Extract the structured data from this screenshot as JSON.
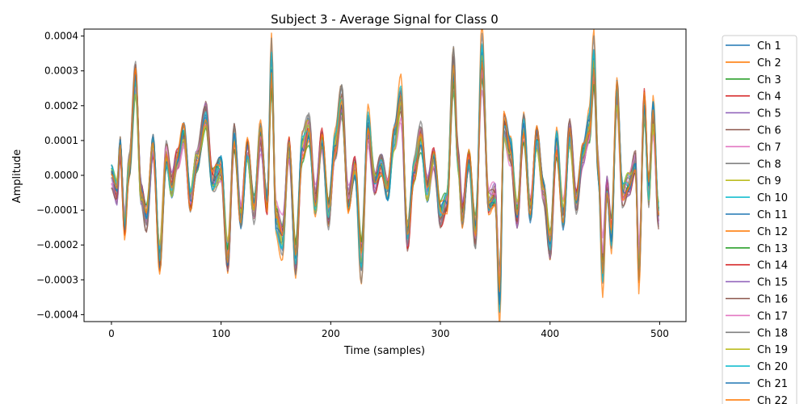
{
  "chart_data": {
    "type": "line",
    "title": "Subject 3 - Average Signal for Class 0",
    "xlabel": "Time (samples)",
    "ylabel": "Amplitude",
    "xlim": [
      -25,
      524
    ],
    "ylim": [
      -0.00042,
      0.00042
    ],
    "x_ticks": [
      0,
      100,
      200,
      300,
      400,
      500
    ],
    "x_tick_labels": [
      "0",
      "100",
      "200",
      "300",
      "400",
      "500"
    ],
    "y_ticks": [
      -0.0004,
      -0.0003,
      -0.0002,
      -0.0001,
      0,
      0.0001,
      0.0002,
      0.0003,
      0.0004
    ],
    "y_tick_labels": [
      "−0.0004",
      "−0.0003",
      "−0.0002",
      "−0.0001",
      "0.0000",
      "0.0001",
      "0.0002",
      "0.0003",
      "0.0004"
    ],
    "grid": false,
    "legend_position": "outside-right",
    "consensus_waveform": {
      "x": [
        0,
        5,
        8,
        12,
        16,
        22,
        27,
        32,
        38,
        44,
        50,
        55,
        60,
        66,
        72,
        78,
        86,
        92,
        100,
        106,
        112,
        118,
        124,
        130,
        136,
        142,
        146,
        150,
        156,
        162,
        168,
        174,
        180,
        186,
        192,
        198,
        204,
        210,
        216,
        222,
        228,
        234,
        240,
        246,
        252,
        258,
        264,
        270,
        276,
        282,
        288,
        294,
        300,
        306,
        312,
        316,
        320,
        326,
        332,
        338,
        344,
        350,
        354,
        358,
        364,
        370,
        376,
        382,
        388,
        394,
        400,
        406,
        412,
        418,
        424,
        430,
        436,
        440,
        444,
        448,
        452,
        456,
        461,
        466,
        472,
        478,
        481,
        486,
        490,
        494,
        499
      ],
      "y": [
        0,
        -5e-05,
        9e-05,
        -0.00015,
        3e-05,
        0.00029,
        -5e-05,
        -0.00013,
        9e-05,
        -0.00025,
        6e-05,
        -3e-05,
        4e-05,
        0.00012,
        -8e-05,
        4e-05,
        0.00018,
        -2e-05,
        2e-05,
        -0.00025,
        0.00012,
        -0.00012,
        8e-05,
        -0.0001,
        0.00012,
        -8e-05,
        0.00033,
        -0.00012,
        -0.00018,
        8e-05,
        -0.00025,
        8e-05,
        0.00014,
        -8e-05,
        0.0001,
        -0.00012,
        8e-05,
        0.00022,
        -8e-05,
        2e-05,
        -0.00025,
        0.00014,
        -2e-05,
        4e-05,
        -4e-05,
        0.00012,
        0.00022,
        -0.00018,
        2e-05,
        0.00012,
        -4e-05,
        5e-05,
        -0.00012,
        -8e-05,
        0.00032,
        5e-05,
        -0.00012,
        4e-05,
        -0.00018,
        0.00034,
        -8e-05,
        -6e-05,
        -0.00035,
        0.00015,
        7e-05,
        -0.00012,
        0.00015,
        -0.0001,
        0.00012,
        -4e-05,
        -0.00021,
        0.0001,
        -0.00012,
        0.00013,
        -8e-05,
        6e-05,
        0.00014,
        0.00033,
        2e-05,
        -0.00027,
        -4e-05,
        -0.00018,
        0.00024,
        -6e-05,
        -3e-05,
        4e-05,
        -0.00028,
        0.00022,
        -5e-05,
        0.00018,
        -0.00012
      ]
    },
    "series": [
      {
        "name": "Ch 1",
        "color": "#1f77b4",
        "scale": 1.0,
        "offset": 0.0,
        "phase": 0.0
      },
      {
        "name": "Ch 2",
        "color": "#ff7f0e",
        "scale": 1.2,
        "offset": 0.0,
        "phase": 0.7
      },
      {
        "name": "Ch 3",
        "color": "#2ca02c",
        "scale": 0.85,
        "offset": 0.0,
        "phase": 1.4
      },
      {
        "name": "Ch 4",
        "color": "#d62728",
        "scale": 0.95,
        "offset": 0.0,
        "phase": 2.1
      },
      {
        "name": "Ch 5",
        "color": "#9467bd",
        "scale": 0.9,
        "offset": 0.0,
        "phase": 2.8
      },
      {
        "name": "Ch 6",
        "color": "#8c564b",
        "scale": 1.0,
        "offset": 0.0,
        "phase": 3.5
      },
      {
        "name": "Ch 7",
        "color": "#e377c2",
        "scale": 0.8,
        "offset": 0.0,
        "phase": 4.2
      },
      {
        "name": "Ch 8",
        "color": "#7f7f7f",
        "scale": 1.05,
        "offset": 0.0,
        "phase": 4.9
      },
      {
        "name": "Ch 9",
        "color": "#bcbd22",
        "scale": 0.9,
        "offset": 0.0,
        "phase": 5.6
      },
      {
        "name": "Ch 10",
        "color": "#17becf",
        "scale": 0.95,
        "offset": 0.0,
        "phase": 0.35
      },
      {
        "name": "Ch 11",
        "color": "#1f77b4",
        "scale": 1.0,
        "offset": 0.0,
        "phase": 1.05
      },
      {
        "name": "Ch 12",
        "color": "#ff7f0e",
        "scale": 0.9,
        "offset": 0.0,
        "phase": 1.75
      },
      {
        "name": "Ch 13",
        "color": "#2ca02c",
        "scale": 0.85,
        "offset": 0.0,
        "phase": 2.45
      },
      {
        "name": "Ch 14",
        "color": "#d62728",
        "scale": 1.0,
        "offset": 0.0,
        "phase": 3.15
      },
      {
        "name": "Ch 15",
        "color": "#9467bd",
        "scale": 0.95,
        "offset": 0.0,
        "phase": 3.85
      },
      {
        "name": "Ch 16",
        "color": "#8c564b",
        "scale": 1.0,
        "offset": 0.0,
        "phase": 4.55
      },
      {
        "name": "Ch 17",
        "color": "#e377c2",
        "scale": 0.85,
        "offset": 0.0,
        "phase": 5.25
      },
      {
        "name": "Ch 18",
        "color": "#7f7f7f",
        "scale": 1.1,
        "offset": 0.0,
        "phase": 5.95
      },
      {
        "name": "Ch 19",
        "color": "#bcbd22",
        "scale": 0.9,
        "offset": 0.0,
        "phase": 0.2
      },
      {
        "name": "Ch 20",
        "color": "#17becf",
        "scale": 1.05,
        "offset": 0.0,
        "phase": 0.9
      },
      {
        "name": "Ch 21",
        "color": "#1f77b4",
        "scale": 1.0,
        "offset": 0.0,
        "phase": 1.6
      },
      {
        "name": "Ch 22",
        "color": "#ff7f0e",
        "scale": 1.0,
        "offset": 0.0,
        "phase": 2.3
      }
    ]
  }
}
